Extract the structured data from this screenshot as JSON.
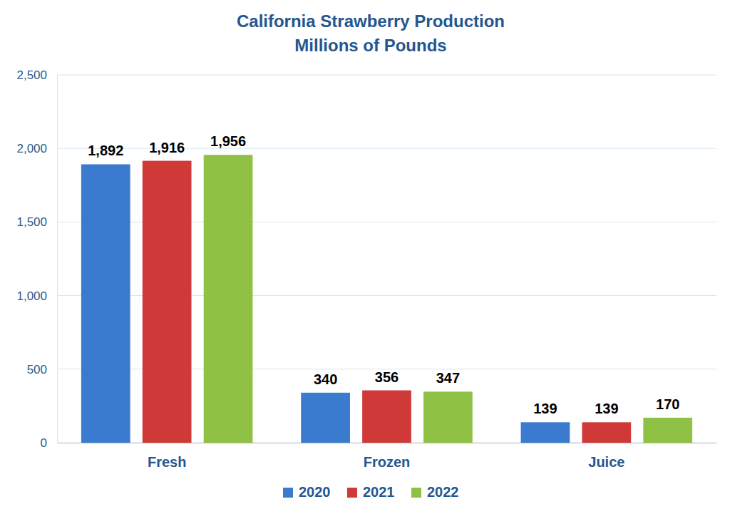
{
  "chart_data": {
    "type": "bar",
    "title": "California Strawberry Production",
    "subtitle": "Millions of Pounds",
    "categories": [
      "Fresh",
      "Frozen",
      "Juice"
    ],
    "series": [
      {
        "name": "2020",
        "color": "#3a7bd0",
        "values": [
          1892,
          340,
          139
        ],
        "value_labels": [
          "1,892",
          "340",
          "139"
        ]
      },
      {
        "name": "2021",
        "color": "#cf3a38",
        "values": [
          1916,
          356,
          139
        ],
        "value_labels": [
          "1,916",
          "356",
          "139"
        ]
      },
      {
        "name": "2022",
        "color": "#8fc144",
        "values": [
          1956,
          347,
          170
        ],
        "value_labels": [
          "1,956",
          "347",
          "170"
        ]
      }
    ],
    "ylim": [
      0,
      2500
    ],
    "yticks": [
      0,
      500,
      {
        "value": 1000,
        "label": "1,000"
      },
      {
        "value": 1500,
        "label": "1,500"
      },
      {
        "value": 2000,
        "label": "2,000"
      },
      {
        "value": 2500,
        "label": "2,500"
      }
    ],
    "grid": true,
    "legend": "bottom",
    "data_labels": true
  }
}
